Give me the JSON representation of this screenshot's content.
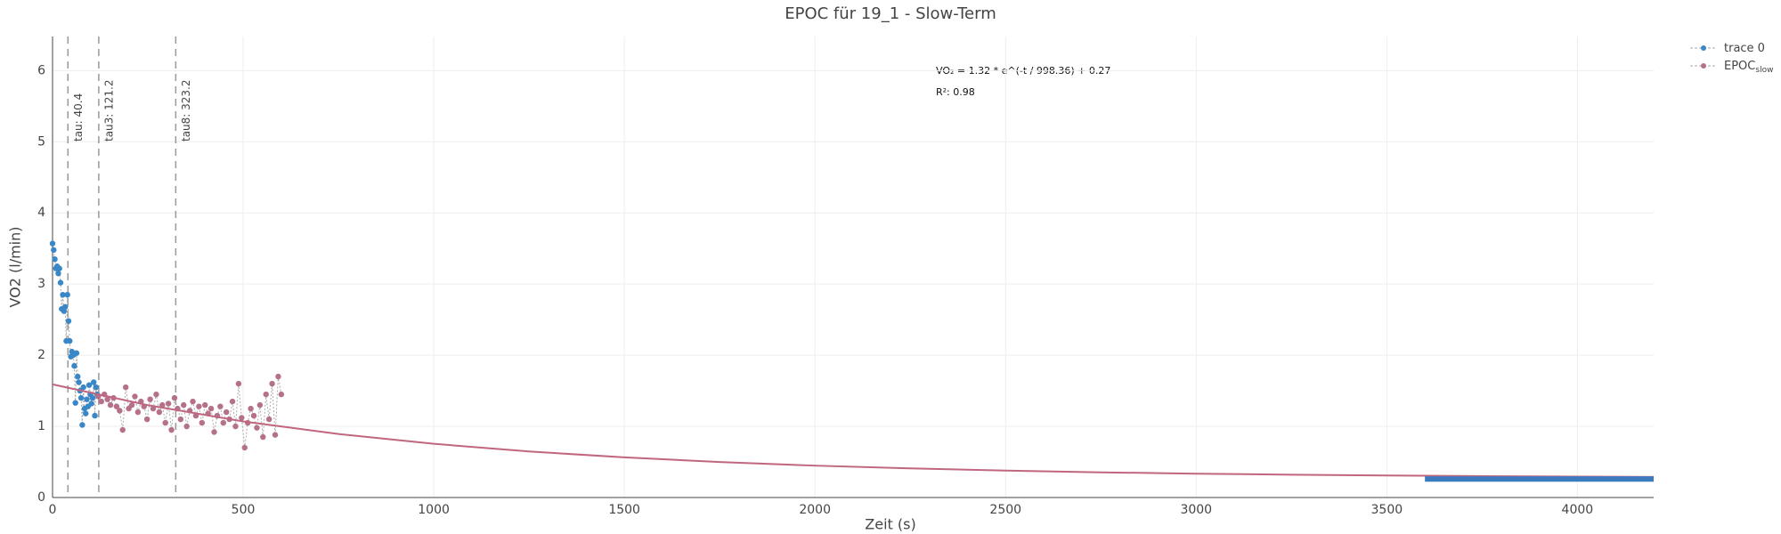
{
  "chart_data": {
    "type": "scatter",
    "title": "EPOC für 19_1 - Slow-Term",
    "x_label": "Zeit (s)",
    "y_label": "VO2 (l/min)",
    "xlim": [
      0,
      4200
    ],
    "ylim": [
      0,
      6.48
    ],
    "xticks": [
      0,
      500,
      1000,
      1500,
      2000,
      2500,
      3000,
      3500,
      4000
    ],
    "yticks": [
      0,
      1,
      2,
      3,
      4,
      5,
      6
    ],
    "grid": true,
    "legend": "top-right",
    "vlines": [
      {
        "x": 40.4,
        "label": "tau: 40.4"
      },
      {
        "x": 121.2,
        "label": "tau3: 121.2"
      },
      {
        "x": 323.2,
        "label": "tau8: 323.2"
      }
    ],
    "annotations": [
      "VO₂ = 1.32 * e^(-t / 998.36) + 0.27",
      "R²: 0.98"
    ],
    "series": [
      {
        "name": "trace 0",
        "color": "#3a87c8",
        "mode": "markers+lines",
        "x": [
          0,
          3,
          6,
          9,
          12,
          15,
          18,
          21,
          24,
          27,
          30,
          33,
          36,
          39,
          42,
          45,
          48,
          51,
          54,
          57,
          60,
          63,
          66,
          69,
          72,
          75,
          78,
          81,
          84,
          87,
          90,
          93,
          96,
          99,
          102,
          105,
          108,
          111,
          114,
          117
        ],
        "values": [
          3.57,
          3.48,
          3.35,
          3.22,
          3.25,
          3.15,
          3.22,
          3.02,
          2.65,
          2.85,
          2.62,
          2.68,
          2.2,
          2.85,
          2.48,
          2.2,
          1.98,
          2.05,
          2.0,
          1.85,
          1.33,
          2.03,
          1.7,
          1.62,
          1.5,
          1.4,
          1.02,
          1.55,
          1.25,
          1.18,
          1.38,
          1.28,
          1.58,
          1.45,
          1.32,
          1.4,
          1.62,
          1.15,
          1.55,
          1.45
        ]
      },
      {
        "name": "EPOC",
        "name_subscript": "slow",
        "color": "#b5718a",
        "mode": "markers+lines",
        "x": [
          120,
          128,
          136,
          144,
          152,
          160,
          168,
          176,
          184,
          192,
          200,
          208,
          216,
          224,
          232,
          240,
          248,
          256,
          264,
          272,
          280,
          288,
          296,
          304,
          312,
          320,
          328,
          336,
          344,
          352,
          360,
          368,
          376,
          384,
          392,
          400,
          408,
          416,
          424,
          432,
          440,
          448,
          456,
          464,
          472,
          480,
          488,
          496,
          504,
          512,
          520,
          528,
          536,
          544,
          552,
          560,
          568,
          576,
          584,
          592,
          600
        ],
        "values": [
          1.42,
          1.35,
          1.45,
          1.38,
          1.3,
          1.4,
          1.28,
          1.22,
          0.95,
          1.55,
          1.25,
          1.3,
          1.42,
          1.2,
          1.35,
          1.28,
          1.1,
          1.38,
          1.25,
          1.45,
          1.2,
          1.3,
          1.05,
          1.32,
          0.95,
          1.4,
          1.25,
          1.1,
          1.3,
          1.0,
          1.22,
          1.35,
          1.15,
          1.28,
          1.05,
          1.3,
          1.18,
          1.25,
          0.92,
          1.15,
          1.28,
          1.05,
          1.2,
          1.1,
          1.35,
          1.0,
          1.6,
          1.12,
          0.7,
          1.05,
          1.25,
          1.15,
          0.98,
          1.3,
          0.85,
          1.45,
          1.1,
          1.6,
          0.88,
          1.7,
          1.45
        ]
      },
      {
        "color": "#c0677f",
        "mode": "lines",
        "width": 2,
        "x": [
          0,
          250,
          500,
          750,
          1000,
          1250,
          1500,
          1750,
          2000,
          2250,
          2500,
          2750,
          3000,
          3250,
          3500,
          3750,
          4000,
          4200
        ],
        "values": [
          1.59,
          1.298,
          1.07,
          0.893,
          0.755,
          0.647,
          0.564,
          0.499,
          0.448,
          0.409,
          0.378,
          0.354,
          0.335,
          0.321,
          0.31,
          0.301,
          0.294,
          0.29
        ]
      },
      {
        "color": "#3a7bc0",
        "mode": "lines",
        "width": 6,
        "x": [
          3600,
          4200
        ],
        "values": [
          0.26,
          0.26
        ]
      }
    ]
  }
}
